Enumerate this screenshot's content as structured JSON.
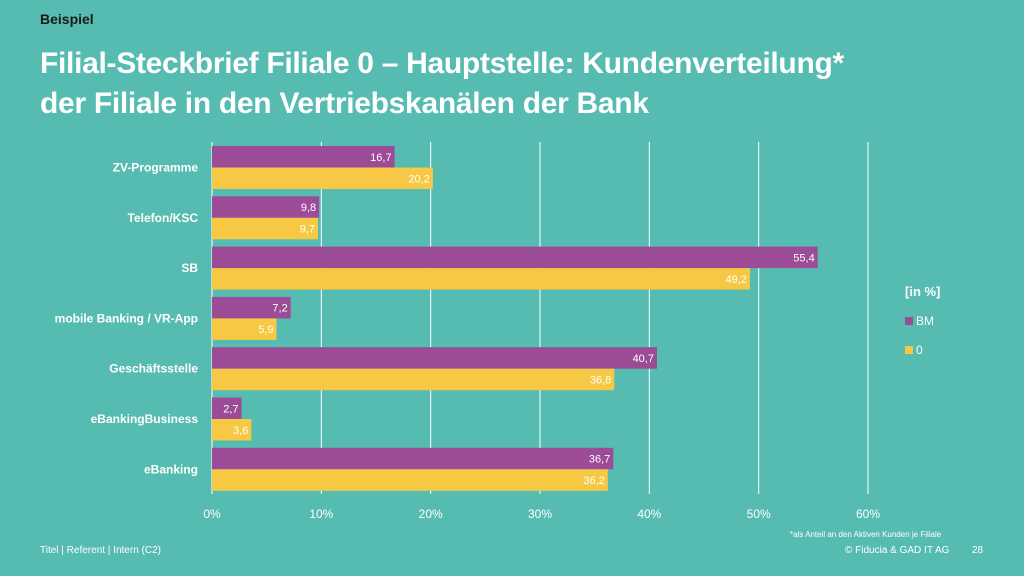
{
  "header": {
    "eyebrow": "Beispiel",
    "title_line1": "Filial-Steckbrief Filiale 0 – Hauptstelle: Kundenverteilung*",
    "title_line2": "der Filiale in den Vertriebskanälen der Bank"
  },
  "chart_data": {
    "type": "bar",
    "orientation": "horizontal",
    "categories": [
      "ZV-Programme",
      "Telefon/KSC",
      "SB",
      "mobile Banking / VR-App",
      "Geschäftsstelle",
      "eBankingBusiness",
      "eBanking"
    ],
    "series": [
      {
        "name": "BM",
        "values": [
          16.7,
          9.8,
          55.4,
          7.2,
          40.7,
          2.7,
          36.7
        ],
        "labels": [
          "16,7",
          "9,8",
          "55,4",
          "7,2",
          "40,7",
          "2,7",
          "36,7"
        ],
        "color": "#9c4b96"
      },
      {
        "name": "0",
        "values": [
          20.2,
          9.7,
          49.2,
          5.9,
          36.8,
          3.6,
          36.2
        ],
        "labels": [
          "20,2",
          "9,7",
          "49,2",
          "5,9",
          "36,8",
          "3,6",
          "36,2"
        ],
        "color": "#f7c843"
      }
    ],
    "xlim": [
      0,
      60
    ],
    "xticks": [
      "0%",
      "10%",
      "20%",
      "30%",
      "40%",
      "50%",
      "60%"
    ],
    "legend_title": "[in %]",
    "legend_position": "right",
    "grid": true,
    "grid_color": "#ffffff"
  },
  "footer": {
    "footnote": "*als Anteil an den Aktiven Kunden je Filiale",
    "left": "Titel | Referent | Intern (C2)",
    "right": "© Fiducia & GAD IT AG",
    "page": "28"
  }
}
